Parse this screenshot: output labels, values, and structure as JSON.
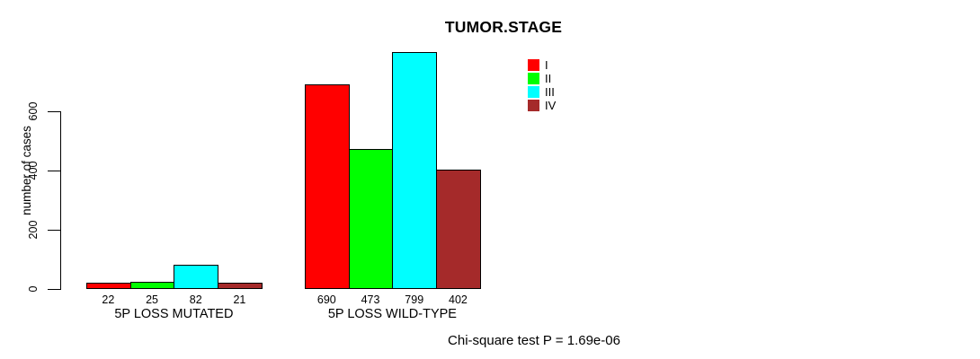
{
  "chart_data": {
    "type": "bar",
    "title": "TUMOR.STAGE",
    "ylabel": "number of cases",
    "xlabel": "",
    "yticks": [
      0,
      200,
      400,
      600
    ],
    "ylim": [
      0,
      810
    ],
    "grid": false,
    "legend_position": "top-right",
    "series_labels": [
      "I",
      "II",
      "III",
      "IV"
    ],
    "series_colors": [
      "#ff0000",
      "#00ff00",
      "#00ffff",
      "#a52a2a"
    ],
    "groups": [
      {
        "label": "5P LOSS MUTATED",
        "values": [
          22,
          25,
          82,
          21
        ]
      },
      {
        "label": "5P LOSS WILD-TYPE",
        "values": [
          690,
          473,
          799,
          402
        ]
      }
    ],
    "bar_value_labels_shown": true,
    "annotation": "Chi-square test P = 1.69e-06"
  }
}
